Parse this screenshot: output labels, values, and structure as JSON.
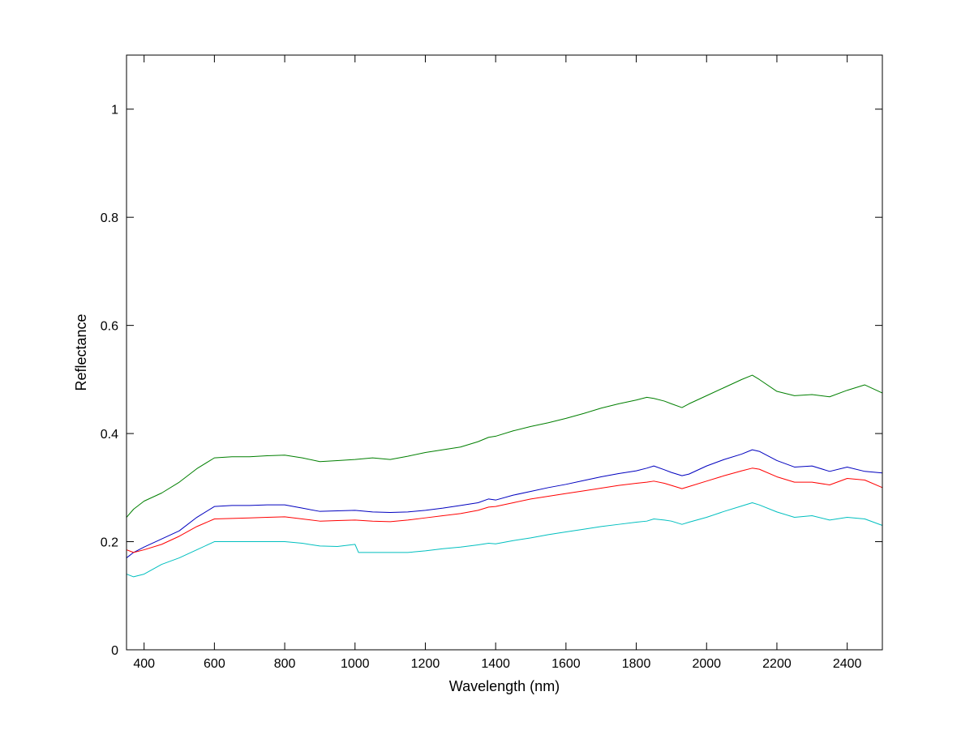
{
  "chart_data": {
    "type": "line",
    "title": "",
    "xlabel": "Wavelength (nm)",
    "ylabel": "Reflectance",
    "xlim": [
      350,
      2500
    ],
    "ylim": [
      0,
      1.1
    ],
    "x_ticks": [
      400,
      600,
      800,
      1000,
      1200,
      1400,
      1600,
      1800,
      2000,
      2200,
      2400
    ],
    "y_ticks": [
      0,
      0.2,
      0.4,
      0.6,
      0.8,
      1
    ],
    "x_tick_labels": [
      "400",
      "600",
      "800",
      "1000",
      "1200",
      "1400",
      "1600",
      "1800",
      "2000",
      "2200",
      "2400"
    ],
    "y_tick_labels": [
      "0",
      "0.2",
      "0.4",
      "0.6",
      "0.8",
      "1"
    ],
    "grid": false,
    "legend": "none",
    "series": [
      {
        "color": "#007f00",
        "x": [
          350,
          370,
          400,
          450,
          500,
          550,
          600,
          650,
          700,
          750,
          800,
          850,
          900,
          950,
          1000,
          1050,
          1100,
          1150,
          1200,
          1250,
          1300,
          1350,
          1380,
          1400,
          1450,
          1500,
          1550,
          1600,
          1650,
          1700,
          1750,
          1800,
          1830,
          1850,
          1880,
          1900,
          1930,
          1950,
          2000,
          2050,
          2100,
          2130,
          2150,
          2200,
          2250,
          2300,
          2350,
          2400,
          2450,
          2500
        ],
        "y": [
          0.245,
          0.26,
          0.275,
          0.29,
          0.31,
          0.335,
          0.355,
          0.357,
          0.357,
          0.359,
          0.36,
          0.355,
          0.348,
          0.35,
          0.352,
          0.355,
          0.352,
          0.358,
          0.365,
          0.37,
          0.375,
          0.385,
          0.393,
          0.395,
          0.405,
          0.413,
          0.42,
          0.428,
          0.437,
          0.447,
          0.455,
          0.462,
          0.467,
          0.465,
          0.46,
          0.455,
          0.448,
          0.455,
          0.47,
          0.485,
          0.5,
          0.508,
          0.5,
          0.478,
          0.47,
          0.472,
          0.468,
          0.48,
          0.49,
          0.475
        ]
      },
      {
        "color": "#0000bf",
        "x": [
          350,
          370,
          400,
          450,
          500,
          550,
          600,
          650,
          700,
          750,
          800,
          850,
          900,
          950,
          1000,
          1050,
          1100,
          1150,
          1200,
          1250,
          1300,
          1350,
          1380,
          1400,
          1450,
          1500,
          1550,
          1600,
          1650,
          1700,
          1750,
          1800,
          1830,
          1850,
          1880,
          1900,
          1930,
          1950,
          2000,
          2050,
          2100,
          2130,
          2150,
          2200,
          2250,
          2300,
          2350,
          2400,
          2450,
          2500
        ],
        "y": [
          0.17,
          0.18,
          0.19,
          0.205,
          0.22,
          0.245,
          0.265,
          0.267,
          0.267,
          0.268,
          0.268,
          0.262,
          0.256,
          0.257,
          0.258,
          0.255,
          0.254,
          0.255,
          0.258,
          0.262,
          0.267,
          0.272,
          0.279,
          0.277,
          0.286,
          0.293,
          0.3,
          0.306,
          0.313,
          0.32,
          0.326,
          0.331,
          0.336,
          0.34,
          0.333,
          0.328,
          0.322,
          0.325,
          0.34,
          0.352,
          0.362,
          0.37,
          0.367,
          0.35,
          0.338,
          0.34,
          0.33,
          0.338,
          0.33,
          0.327
        ]
      },
      {
        "color": "#ff0000",
        "x": [
          350,
          370,
          400,
          450,
          500,
          550,
          600,
          650,
          700,
          750,
          800,
          850,
          900,
          950,
          1000,
          1050,
          1100,
          1150,
          1200,
          1250,
          1300,
          1350,
          1380,
          1400,
          1450,
          1500,
          1550,
          1600,
          1650,
          1700,
          1750,
          1800,
          1830,
          1850,
          1880,
          1900,
          1930,
          1950,
          2000,
          2050,
          2100,
          2130,
          2150,
          2200,
          2250,
          2300,
          2350,
          2400,
          2450,
          2500
        ],
        "y": [
          0.185,
          0.18,
          0.185,
          0.195,
          0.21,
          0.228,
          0.242,
          0.243,
          0.244,
          0.245,
          0.246,
          0.242,
          0.238,
          0.239,
          0.24,
          0.238,
          0.237,
          0.24,
          0.244,
          0.248,
          0.252,
          0.258,
          0.264,
          0.265,
          0.272,
          0.279,
          0.284,
          0.289,
          0.294,
          0.299,
          0.304,
          0.308,
          0.31,
          0.312,
          0.308,
          0.304,
          0.298,
          0.302,
          0.312,
          0.322,
          0.331,
          0.336,
          0.334,
          0.32,
          0.31,
          0.31,
          0.305,
          0.317,
          0.314,
          0.3
        ]
      },
      {
        "color": "#00bfbf",
        "x": [
          350,
          370,
          400,
          450,
          500,
          550,
          600,
          650,
          700,
          750,
          800,
          850,
          900,
          950,
          1000,
          1010,
          1050,
          1100,
          1150,
          1200,
          1250,
          1300,
          1350,
          1380,
          1400,
          1450,
          1500,
          1550,
          1600,
          1650,
          1700,
          1750,
          1800,
          1830,
          1850,
          1880,
          1900,
          1930,
          1950,
          2000,
          2050,
          2100,
          2130,
          2150,
          2200,
          2250,
          2300,
          2350,
          2400,
          2450,
          2500
        ],
        "y": [
          0.14,
          0.135,
          0.14,
          0.158,
          0.17,
          0.185,
          0.2,
          0.2,
          0.2,
          0.2,
          0.2,
          0.197,
          0.192,
          0.191,
          0.195,
          0.18,
          0.18,
          0.18,
          0.18,
          0.183,
          0.187,
          0.19,
          0.194,
          0.197,
          0.196,
          0.202,
          0.207,
          0.213,
          0.218,
          0.223,
          0.228,
          0.232,
          0.236,
          0.238,
          0.242,
          0.24,
          0.238,
          0.232,
          0.236,
          0.245,
          0.256,
          0.266,
          0.272,
          0.268,
          0.255,
          0.245,
          0.248,
          0.24,
          0.245,
          0.242,
          0.23
        ]
      }
    ]
  }
}
